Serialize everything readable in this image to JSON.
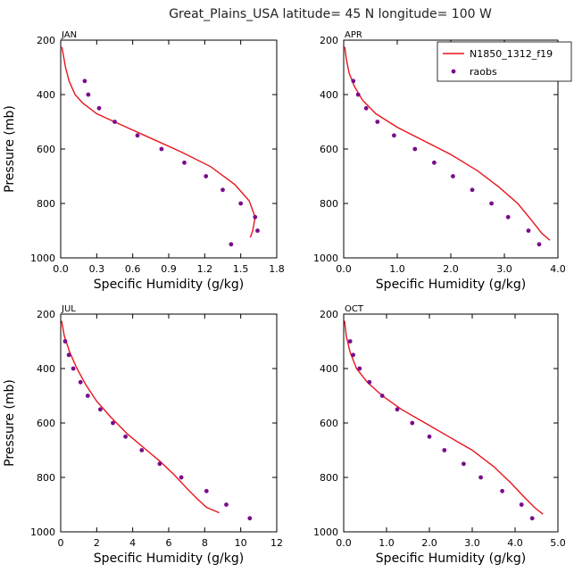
{
  "figure_title": "Great_Plains_USA   latitude= 45 N longitude= 100 W",
  "legend": {
    "model_label": "N1850_1312_f19",
    "obs_label": "raobs"
  },
  "colors": {
    "model_line": "#e8141c",
    "obs_points": "#7a0c8c"
  },
  "chart_data": [
    {
      "type": "line",
      "panel": "JAN",
      "xlabel": "Specific Humidity (g/kg)",
      "ylabel": "Pressure (mb)",
      "xlim": [
        0,
        1.8
      ],
      "ylim": [
        1000,
        200
      ],
      "xticks": [
        0.0,
        0.3,
        0.6,
        0.9,
        1.2,
        1.5,
        1.8
      ],
      "xtick_labels": [
        "0.0",
        "0.3",
        "0.6",
        "0.9",
        "1.2",
        "1.5",
        "1.8"
      ],
      "yticks": [
        200,
        400,
        600,
        800,
        1000
      ],
      "ytick_labels": [
        "200",
        "400",
        "600",
        "800",
        "1000"
      ],
      "series": [
        {
          "name": "N1850_1312_f19",
          "kind": "line",
          "x": [
            0.01,
            0.02,
            0.04,
            0.07,
            0.12,
            0.18,
            0.3,
            0.5,
            0.75,
            1.0,
            1.25,
            1.45,
            1.57,
            1.62,
            1.6,
            1.58
          ],
          "y": [
            225,
            250,
            300,
            350,
            400,
            430,
            470,
            510,
            560,
            610,
            665,
            730,
            790,
            850,
            900,
            925
          ]
        },
        {
          "name": "raobs",
          "kind": "scatter",
          "x": [
            0.2,
            0.23,
            0.32,
            0.45,
            0.64,
            0.84,
            1.03,
            1.21,
            1.35,
            1.5,
            1.62,
            1.64,
            1.42
          ],
          "y": [
            350,
            400,
            450,
            500,
            550,
            600,
            650,
            700,
            750,
            800,
            850,
            900,
            950
          ]
        }
      ]
    },
    {
      "type": "line",
      "panel": "APR",
      "xlabel": "Specific Humidity (g/kg)",
      "ylabel": "",
      "xlim": [
        0,
        4.0
      ],
      "ylim": [
        1000,
        200
      ],
      "xticks": [
        0,
        1,
        2,
        3,
        4
      ],
      "xtick_labels": [
        "0.0",
        "1.0",
        "2.0",
        "3.0",
        "4.0"
      ],
      "yticks": [
        200,
        400,
        600,
        800,
        1000
      ],
      "ytick_labels": [
        "200",
        "400",
        "600",
        "800",
        "1000"
      ],
      "series": [
        {
          "name": "N1850_1312_f19",
          "kind": "line",
          "x": [
            0.02,
            0.05,
            0.1,
            0.2,
            0.35,
            0.6,
            1.0,
            1.5,
            2.0,
            2.5,
            2.9,
            3.25,
            3.5,
            3.7,
            3.85
          ],
          "y": [
            225,
            270,
            320,
            370,
            420,
            470,
            520,
            570,
            620,
            680,
            740,
            800,
            860,
            910,
            935
          ]
        },
        {
          "name": "raobs",
          "kind": "scatter",
          "x": [
            0.18,
            0.27,
            0.42,
            0.63,
            0.94,
            1.33,
            1.69,
            2.04,
            2.4,
            2.76,
            3.07,
            3.45,
            3.65
          ],
          "y": [
            350,
            400,
            450,
            500,
            550,
            600,
            650,
            700,
            750,
            800,
            850,
            900,
            950
          ]
        }
      ]
    },
    {
      "type": "line",
      "panel": "JUL",
      "xlabel": "Specific Humidity (g/kg)",
      "ylabel": "Pressure (mb)",
      "xlim": [
        0,
        12
      ],
      "ylim": [
        1000,
        200
      ],
      "xticks": [
        0,
        2,
        4,
        6,
        8,
        10,
        12
      ],
      "xtick_labels": [
        "0",
        "2",
        "4",
        "6",
        "8",
        "10",
        "12"
      ],
      "yticks": [
        200,
        400,
        600,
        800,
        1000
      ],
      "ytick_labels": [
        "200",
        "400",
        "600",
        "800",
        "1000"
      ],
      "series": [
        {
          "name": "N1850_1312_f19",
          "kind": "line",
          "x": [
            0.05,
            0.2,
            0.5,
            0.9,
            1.4,
            2.0,
            2.8,
            3.7,
            4.6,
            5.5,
            6.3,
            7.0,
            7.6,
            8.1,
            8.8
          ],
          "y": [
            225,
            280,
            340,
            400,
            460,
            520,
            580,
            640,
            690,
            740,
            790,
            840,
            880,
            910,
            930
          ]
        },
        {
          "name": "raobs",
          "kind": "scatter",
          "x": [
            0.25,
            0.45,
            0.7,
            1.1,
            1.5,
            2.2,
            2.9,
            3.6,
            4.5,
            5.5,
            6.7,
            8.1,
            9.2,
            10.5
          ],
          "y": [
            300,
            350,
            400,
            450,
            500,
            550,
            600,
            650,
            700,
            750,
            800,
            850,
            900,
            950
          ]
        }
      ]
    },
    {
      "type": "line",
      "panel": "OCT",
      "xlabel": "Specific Humidity (g/kg)",
      "ylabel": "",
      "xlim": [
        0,
        5.0
      ],
      "ylim": [
        1000,
        200
      ],
      "xticks": [
        0,
        1,
        2,
        3,
        4,
        5
      ],
      "xtick_labels": [
        "0.0",
        "1.0",
        "2.0",
        "3.0",
        "4.0",
        "5.0"
      ],
      "yticks": [
        200,
        400,
        600,
        800,
        1000
      ],
      "ytick_labels": [
        "200",
        "400",
        "600",
        "800",
        "1000"
      ],
      "series": [
        {
          "name": "N1850_1312_f19",
          "kind": "line",
          "x": [
            0.02,
            0.06,
            0.15,
            0.3,
            0.55,
            0.9,
            1.35,
            1.9,
            2.45,
            3.0,
            3.5,
            3.9,
            4.2,
            4.45,
            4.65
          ],
          "y": [
            225,
            280,
            340,
            400,
            450,
            500,
            550,
            600,
            650,
            700,
            760,
            820,
            870,
            910,
            935
          ]
        },
        {
          "name": "raobs",
          "kind": "scatter",
          "x": [
            0.15,
            0.22,
            0.37,
            0.6,
            0.9,
            1.25,
            1.6,
            2.0,
            2.35,
            2.8,
            3.2,
            3.7,
            4.15,
            4.4
          ],
          "y": [
            300,
            350,
            400,
            450,
            500,
            550,
            600,
            650,
            700,
            750,
            800,
            850,
            900,
            950
          ]
        }
      ]
    }
  ]
}
